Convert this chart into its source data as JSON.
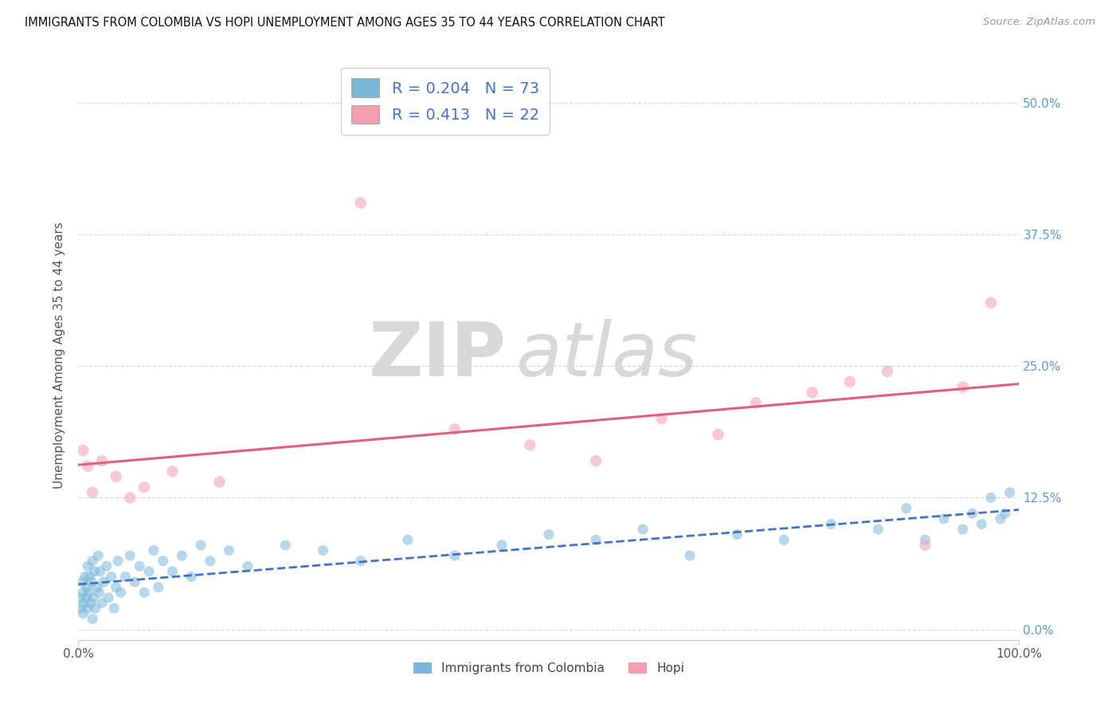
{
  "title": "IMMIGRANTS FROM COLOMBIA VS HOPI UNEMPLOYMENT AMONG AGES 35 TO 44 YEARS CORRELATION CHART",
  "source": "Source: ZipAtlas.com",
  "ylabel": "Unemployment Among Ages 35 to 44 years",
  "ytick_labels": [
    "0.0%",
    "12.5%",
    "25.0%",
    "37.5%",
    "50.0%"
  ],
  "ytick_values": [
    0,
    12.5,
    25.0,
    37.5,
    50.0
  ],
  "xlim": [
    0,
    100
  ],
  "ylim": [
    -1,
    53
  ],
  "legend_label1": "R = 0.204   N = 73",
  "legend_label2": "R = 0.413   N = 22",
  "legend_bottom_label1": "Immigrants from Colombia",
  "legend_bottom_label2": "Hopi",
  "blue_color": "#7ab8d9",
  "pink_color": "#f2a0b0",
  "blue_line_color": "#4472c4",
  "pink_line_color": "#e0607a",
  "grid_color": "#d0d0d0",
  "title_color": "#111111",
  "source_color": "#999999",
  "ytick_color": "#5b9bd5",
  "label_color": "#555555",
  "blue_x": [
    0.2,
    0.3,
    0.4,
    0.5,
    0.5,
    0.6,
    0.7,
    0.8,
    0.9,
    1.0,
    1.0,
    1.1,
    1.2,
    1.3,
    1.4,
    1.5,
    1.5,
    1.6,
    1.7,
    1.8,
    2.0,
    2.1,
    2.2,
    2.3,
    2.5,
    2.7,
    3.0,
    3.2,
    3.5,
    3.8,
    4.0,
    4.2,
    4.5,
    5.0,
    5.5,
    6.0,
    6.5,
    7.0,
    7.5,
    8.0,
    8.5,
    9.0,
    10.0,
    11.0,
    12.0,
    13.0,
    14.0,
    16.0,
    18.0,
    22.0,
    26.0,
    30.0,
    35.0,
    40.0,
    45.0,
    50.0,
    55.0,
    60.0,
    65.0,
    70.0,
    75.0,
    80.0,
    85.0,
    88.0,
    90.0,
    92.0,
    94.0,
    95.0,
    96.0,
    97.0,
    98.0,
    98.5,
    99.0
  ],
  "blue_y": [
    3.0,
    2.0,
    4.5,
    1.5,
    3.5,
    2.5,
    5.0,
    3.0,
    4.0,
    2.0,
    6.0,
    3.5,
    5.0,
    2.5,
    4.5,
    1.0,
    6.5,
    3.0,
    5.5,
    2.0,
    4.0,
    7.0,
    3.5,
    5.5,
    2.5,
    4.5,
    6.0,
    3.0,
    5.0,
    2.0,
    4.0,
    6.5,
    3.5,
    5.0,
    7.0,
    4.5,
    6.0,
    3.5,
    5.5,
    7.5,
    4.0,
    6.5,
    5.5,
    7.0,
    5.0,
    8.0,
    6.5,
    7.5,
    6.0,
    8.0,
    7.5,
    6.5,
    8.5,
    7.0,
    8.0,
    9.0,
    8.5,
    9.5,
    7.0,
    9.0,
    8.5,
    10.0,
    9.5,
    11.5,
    8.5,
    10.5,
    9.5,
    11.0,
    10.0,
    12.5,
    10.5,
    11.0,
    13.0
  ],
  "pink_x": [
    0.5,
    1.0,
    1.5,
    2.5,
    4.0,
    5.5,
    7.0,
    10.0,
    15.0,
    30.0,
    40.0,
    48.0,
    55.0,
    62.0,
    68.0,
    72.0,
    78.0,
    82.0,
    86.0,
    90.0,
    94.0,
    97.0
  ],
  "pink_y": [
    17.0,
    15.5,
    13.0,
    16.0,
    14.5,
    12.5,
    13.5,
    15.0,
    14.0,
    40.5,
    19.0,
    17.5,
    16.0,
    20.0,
    18.5,
    21.5,
    22.5,
    23.5,
    24.5,
    8.0,
    23.0,
    31.0
  ]
}
